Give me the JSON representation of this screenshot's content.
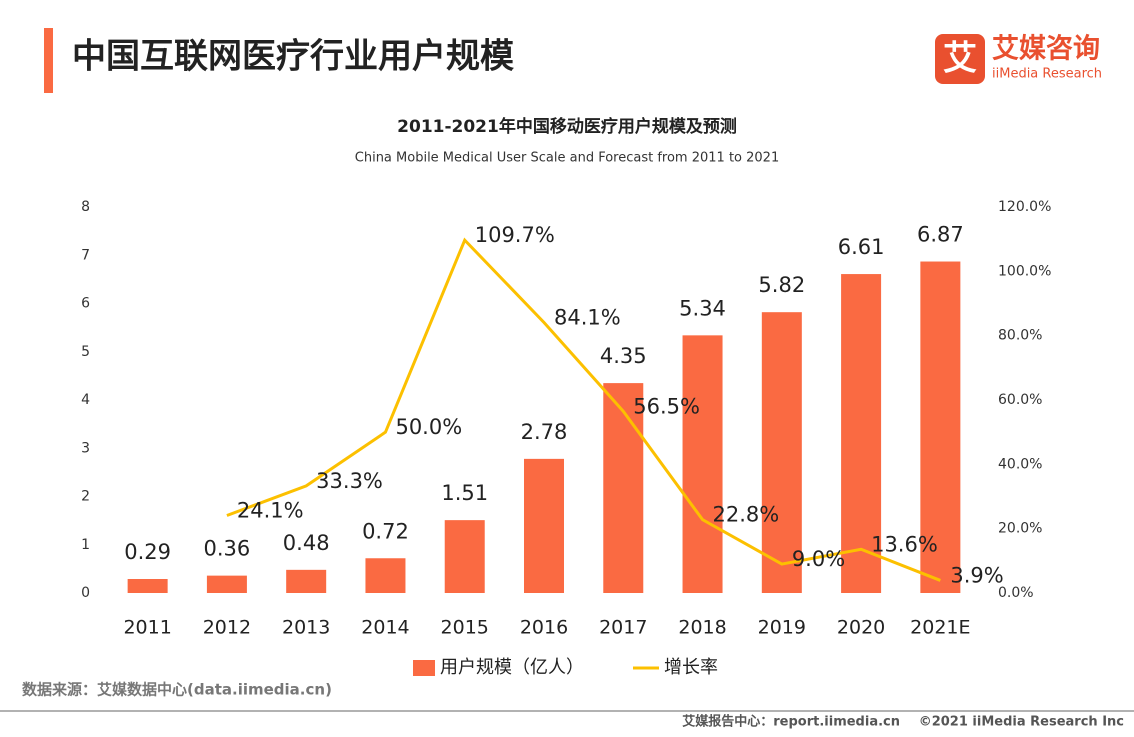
{
  "header": {
    "title": "中国互联网医疗行业用户规模",
    "logo_mark": "艾",
    "logo_name": "艾媒咨询",
    "logo_sub": "iiMedia Research"
  },
  "chart_data": {
    "type": "bar",
    "title": "2011-2021年中国移动医疗用户规模及预测",
    "subtitle": "China Mobile Medical User Scale and Forecast from 2011 to 2021",
    "categories": [
      "2011",
      "2012",
      "2013",
      "2014",
      "2015",
      "2016",
      "2017",
      "2018",
      "2019",
      "2020",
      "2021E"
    ],
    "series": [
      {
        "name": "用户规模（亿人）",
        "type": "bar",
        "color": "#fa6a42",
        "values": [
          0.29,
          0.36,
          0.48,
          0.72,
          1.51,
          2.78,
          4.35,
          5.34,
          5.82,
          6.61,
          6.87
        ]
      },
      {
        "name": "增长率",
        "type": "line",
        "axis": "y2",
        "color": "#fcc000",
        "values": [
          null,
          24.1,
          33.3,
          50.0,
          109.7,
          84.1,
          56.5,
          22.8,
          9.0,
          13.6,
          3.9
        ],
        "value_labels": [
          null,
          "24.1%",
          "33.3%",
          "50.0%",
          "109.7%",
          "84.1%",
          "56.5%",
          "22.8%",
          "9.0%",
          "13.6%",
          "3.9%"
        ]
      }
    ],
    "ylim": [
      0,
      8
    ],
    "yticks": [
      0,
      1,
      2,
      3,
      4,
      5,
      6,
      7,
      8
    ],
    "y2lim": [
      0,
      120
    ],
    "y2ticks": [
      {
        "value": 0,
        "label": "0.0%"
      },
      {
        "value": 20,
        "label": "20.0%"
      },
      {
        "value": 40,
        "label": "40.0%"
      },
      {
        "value": 60,
        "label": "60.0%"
      },
      {
        "value": 80,
        "label": "80.0%"
      },
      {
        "value": 100,
        "label": "100.0%"
      },
      {
        "value": 120,
        "label": "120.0%"
      }
    ],
    "grid": false,
    "legend": "bottom"
  },
  "source": "数据来源：艾媒数据中心(data.iimedia.cn)",
  "footer": {
    "report": "艾媒报告中心：report.iimedia.cn",
    "copyright": "©2021  iiMedia Research  Inc"
  }
}
